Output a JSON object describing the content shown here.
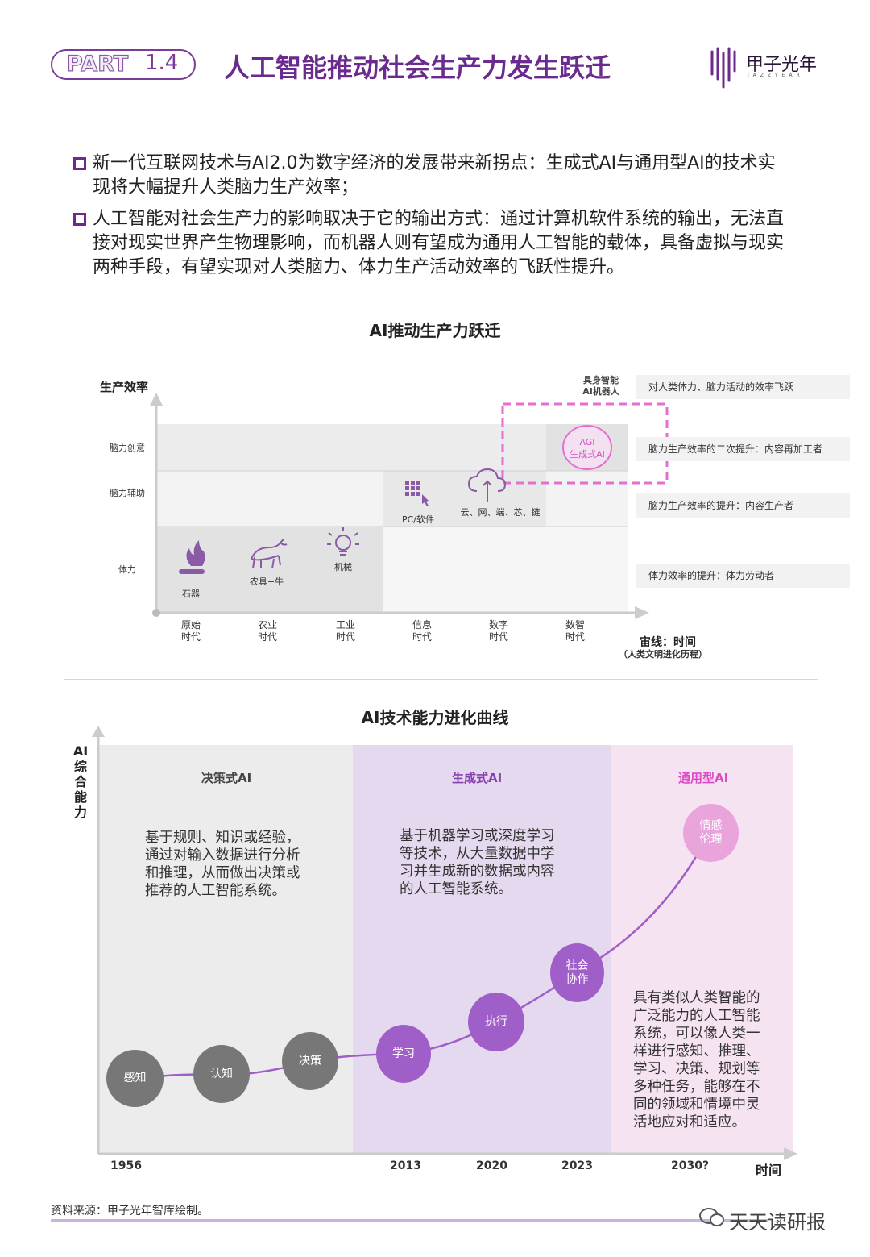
{
  "header": {
    "part_word": "PART",
    "part_num": "1.4",
    "title": "人工智能推动社会生产力发生跃迁",
    "logo_text": "甲子光年",
    "logo_sub": "JAZZYEAR"
  },
  "bullets": [
    {
      "line1": "新一代互联网技术与AI2.0为数字经济的发展带来新拐点：生成式AI与通用型AI的技术实",
      "line2": "现将大幅提升人类脑力生产效率；"
    },
    {
      "line1": "人工智能对社会生产力的影响取决于它的输出方式：通过计算机软件系统的输出，无法直",
      "line2": "接对现实世界产生物理影响，而机器人则有望成为通用人工智能的载体，具备虚拟与现实",
      "line3": "两种手段，有望实现对人类脑力、体力生产活动效率的飞跃性提升。"
    }
  ],
  "chart1": {
    "title": "AI推动生产力跃迁",
    "y_axis_label": "生产效率",
    "levels": [
      "脑力创意",
      "脑力辅助",
      "体力"
    ],
    "eras": [
      "原始\n时代",
      "农业\n时代",
      "工业\n时代",
      "信息\n时代",
      "数字\n时代",
      "数智\n时代"
    ],
    "x_axis_label": "宙线：时间",
    "x_axis_sub": "（人类文明进化历程）",
    "items": {
      "stone": "石器",
      "farm": "农具+牛",
      "machine": "机械",
      "pc": "PC/软件",
      "cloud": "云、网、端、芯、链",
      "agi": "AGI\n生成式AI",
      "robot": "具身智能\nAI机器人"
    },
    "right_notes": [
      "对人类体力、脑力活动的效率飞跃",
      "脑力生产效率的二次提升：内容再加工者",
      "脑力生产效率的提升：内容生产者",
      "体力效率的提升：体力劳动者"
    ]
  },
  "chart2": {
    "title": "AI技术能力进化曲线",
    "y_axis_label": "AI\n综\n合\n能\n力",
    "x_axis_label": "时间",
    "phases": [
      {
        "name": "决策式AI",
        "desc": "基于规则、知识或经验，\n通过对输入数据进行分析\n和推理，从而做出决策或\n推荐的人工智能系统。"
      },
      {
        "name": "生成式AI",
        "desc": "基于机器学习或深度学习\n等技术，从大量数据中学\n习并生成新的数据或内容\n的人工智能系统。"
      },
      {
        "name": "通用型AI",
        "desc": "具有类似人类智能的\n广泛能力的人工智能\n系统，可以像人类一\n样进行感知、推理、\n学习、决策、规划等\n多种任务，能够在不\n同的领域和情境中灵\n活地应对和适应。"
      }
    ],
    "nodes": [
      "感知",
      "认知",
      "决策",
      "学习",
      "执行",
      "社会\n协作",
      "情感\n伦理"
    ],
    "years": [
      "1956",
      "2013",
      "2020",
      "2023",
      "2030?"
    ],
    "colors": {
      "gray": "#777777",
      "purple": "#a05fc8",
      "pink": "#e9a4dc"
    }
  },
  "footer": {
    "source": "资料来源：甲子光年智库绘制。",
    "watermark_label": "天天读研报"
  }
}
